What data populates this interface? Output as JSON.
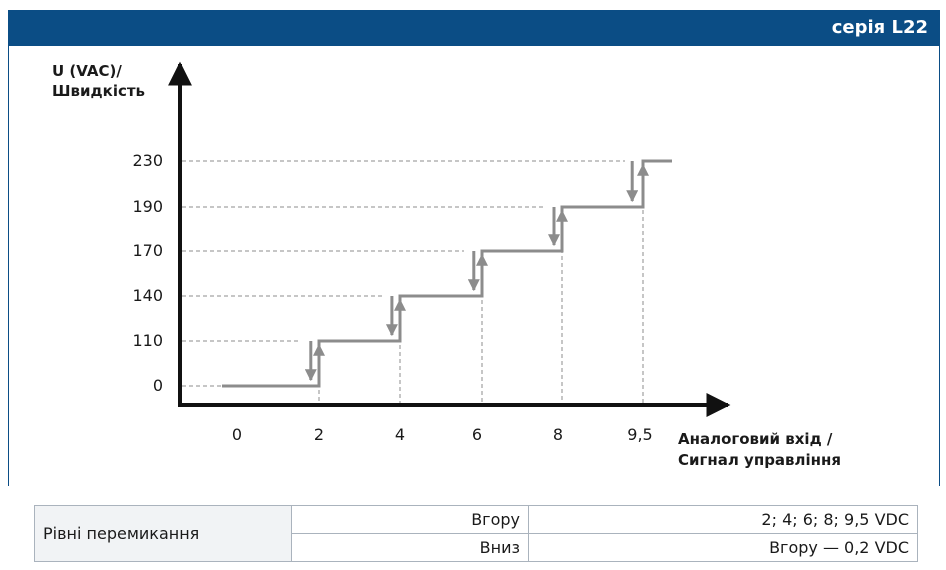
{
  "header": {
    "series_title": "серія L22"
  },
  "chart_data": {
    "type": "line",
    "ylabel_lines": [
      "U (VAC)/",
      "Швидкість"
    ],
    "xlabel_lines": [
      "Аналоговий вхід /",
      "Сигнал управління"
    ],
    "x_tick_labels": [
      "0",
      "2",
      "4",
      "6",
      "8",
      "9,5"
    ],
    "y_tick_labels": [
      "0",
      "110",
      "140",
      "170",
      "190",
      "230"
    ],
    "series": [
      {
        "direction": "up",
        "steps": [
          {
            "x": 2,
            "from": "0",
            "to": "110"
          },
          {
            "x": 4,
            "from": "110",
            "to": "140"
          },
          {
            "x": 6,
            "from": "140",
            "to": "170"
          },
          {
            "x": 8,
            "from": "170",
            "to": "190"
          },
          {
            "x": 9.5,
            "from": "190",
            "to": "230"
          }
        ]
      },
      {
        "direction": "down",
        "steps": [
          {
            "x": 9.3,
            "from": "230",
            "to": "190"
          },
          {
            "x": 7.8,
            "from": "190",
            "to": "170"
          },
          {
            "x": 5.8,
            "from": "170",
            "to": "140"
          },
          {
            "x": 3.8,
            "from": "140",
            "to": "110"
          },
          {
            "x": 1.8,
            "from": "110",
            "to": "0"
          }
        ]
      }
    ],
    "grid": "dashed-guides",
    "colors": {
      "line": "#8c8c8c",
      "axis": "#111111",
      "guide": "#8c8c8c"
    }
  },
  "table": {
    "label": "Рівні перемикання",
    "rows": [
      {
        "direction": "Вгору",
        "value": "2; 4; 6; 8; 9,5 VDC"
      },
      {
        "direction": "Вниз",
        "value": "Вгору — 0,2 VDC"
      }
    ]
  }
}
